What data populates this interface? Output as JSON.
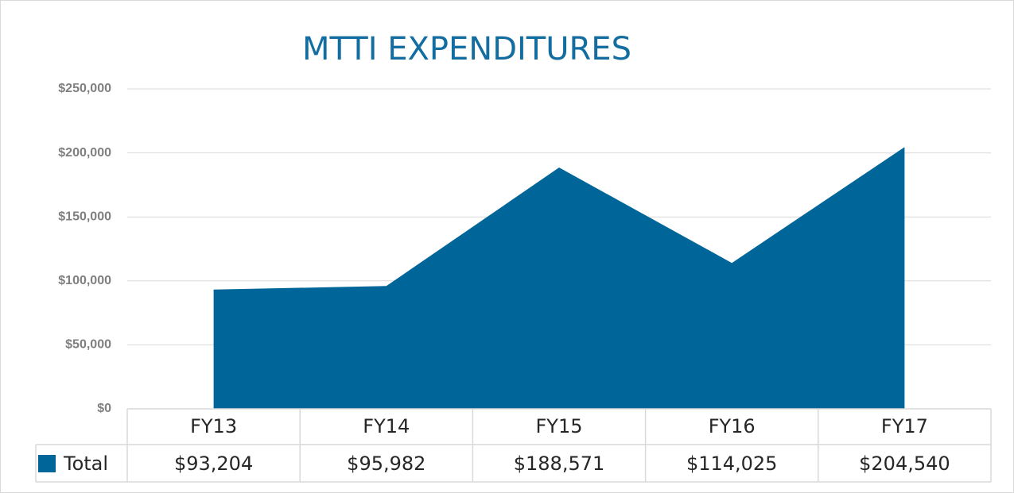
{
  "chart_data": {
    "type": "area",
    "title": "MTTI EXPENDITURES",
    "categories": [
      "FY13",
      "FY14",
      "FY15",
      "FY16",
      "FY17"
    ],
    "series": [
      {
        "name": "Total",
        "color": "#006699",
        "values": [
          93204,
          95982,
          188571,
          114025,
          204540
        ],
        "value_labels": [
          "$93,204",
          "$95,982",
          "$188,571",
          "$114,025",
          "$204,540"
        ]
      }
    ],
    "ylim": [
      0,
      250000
    ],
    "yticks": [
      {
        "value": 0,
        "label": "$0"
      },
      {
        "value": 50000,
        "label": "$50,000"
      },
      {
        "value": 100000,
        "label": "$100,000"
      },
      {
        "value": 150000,
        "label": "$150,000"
      },
      {
        "value": 200000,
        "label": "$200,000"
      },
      {
        "value": 250000,
        "label": "$250,000"
      }
    ],
    "grid": true
  }
}
